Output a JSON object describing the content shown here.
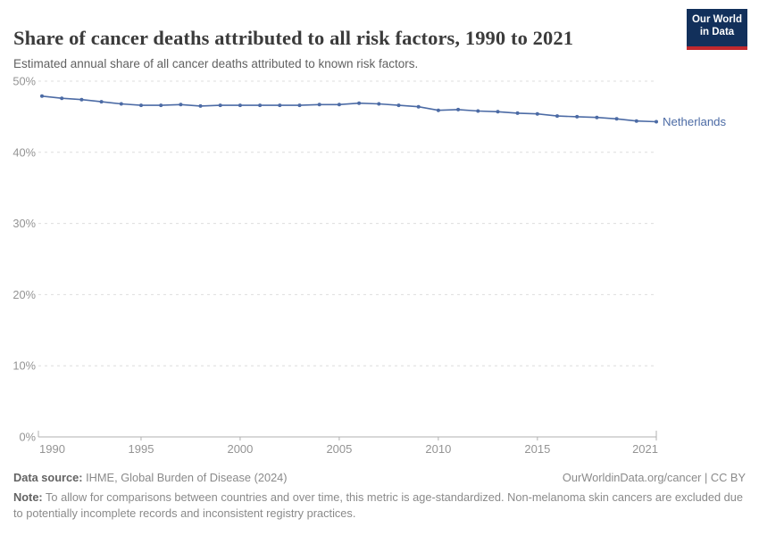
{
  "header": {
    "title": "Share of cancer deaths attributed to all risk factors, 1990 to 2021",
    "subtitle": "Estimated annual share of all cancer deaths attributed to known risk factors.",
    "logo": {
      "line1": "Our World",
      "line2": "in Data"
    }
  },
  "chart_data": {
    "type": "line",
    "title": "Share of cancer deaths attributed to all risk factors, 1990 to 2021",
    "xlabel": "",
    "ylabel": "",
    "xlim": [
      1990,
      2021
    ],
    "ylim": [
      0,
      50
    ],
    "grid": "horizontal-dashed",
    "legend_position": "end-of-line-label",
    "x_ticks": [
      1990,
      1995,
      2000,
      2005,
      2010,
      2015,
      2021
    ],
    "y_ticks": [
      0,
      10,
      20,
      30,
      40,
      50
    ],
    "y_tick_suffix": "%",
    "series": [
      {
        "name": "Netherlands",
        "color": "#4c6ba5",
        "x": [
          1990,
          1991,
          1992,
          1993,
          1994,
          1995,
          1996,
          1997,
          1998,
          1999,
          2000,
          2001,
          2002,
          2003,
          2004,
          2005,
          2006,
          2007,
          2008,
          2009,
          2010,
          2011,
          2012,
          2013,
          2014,
          2015,
          2016,
          2017,
          2018,
          2019,
          2020,
          2021
        ],
        "values": [
          47.9,
          47.6,
          47.4,
          47.1,
          46.8,
          46.6,
          46.6,
          46.7,
          46.5,
          46.6,
          46.6,
          46.6,
          46.6,
          46.6,
          46.7,
          46.7,
          46.9,
          46.8,
          46.6,
          46.4,
          45.9,
          46.0,
          45.8,
          45.7,
          45.5,
          45.4,
          45.1,
          45.0,
          44.9,
          44.7,
          44.4,
          44.3
        ]
      }
    ]
  },
  "colors": {
    "line": "#4c6ba5",
    "gridline": "#dddddd",
    "axis": "#b0b0b0",
    "tick_label": "#949494",
    "logo_bg": "#12305b",
    "logo_stripe": "#c0282d"
  },
  "footer": {
    "source_label": "Data source:",
    "source_text": " IHME, Global Burden of Disease (2024)",
    "attribution": "OurWorldinData.org/cancer | CC BY",
    "note_label": "Note:",
    "note_text": " To allow for comparisons between countries and over time, this metric is age-standardized. Non-melanoma skin cancers are excluded due to potentially incomplete records and inconsistent registry practices."
  }
}
